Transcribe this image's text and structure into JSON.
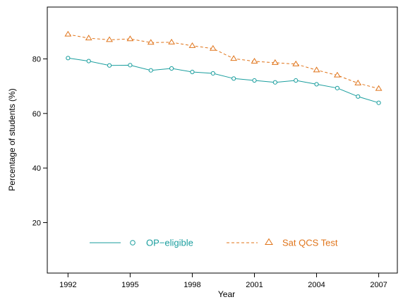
{
  "chart_data": {
    "type": "line",
    "xlabel": "Year",
    "ylabel": "Percentage of students (%)",
    "xlim": [
      1991.0,
      2007.9
    ],
    "ylim": [
      1.5,
      99
    ],
    "x_ticks": [
      1992,
      1995,
      1998,
      2001,
      2004,
      2007
    ],
    "y_ticks": [
      20,
      40,
      60,
      80
    ],
    "x": [
      1992,
      1993,
      1994,
      1995,
      1996,
      1997,
      1998,
      1999,
      2000,
      2001,
      2002,
      2003,
      2004,
      2005,
      2006,
      2007
    ],
    "series": [
      {
        "name": "OP−eligible",
        "color": "#1a9e9e",
        "line_style": "solid",
        "marker": "circle",
        "values": [
          80.3,
          79.2,
          77.6,
          77.7,
          75.8,
          76.5,
          75.2,
          74.7,
          72.8,
          72.1,
          71.4,
          72.1,
          70.7,
          69.3,
          66.2,
          63.9
        ]
      },
      {
        "name": "Sat QCS Test",
        "color": "#e0741a",
        "line_style": "dashed",
        "marker": "triangle",
        "values": [
          89.0,
          87.6,
          87.0,
          87.3,
          86.0,
          86.1,
          84.8,
          83.8,
          80.1,
          79.1,
          78.6,
          78.1,
          75.9,
          74.0,
          71.1,
          69.1
        ]
      }
    ],
    "grid": false,
    "legend_position": "bottom-inside"
  }
}
